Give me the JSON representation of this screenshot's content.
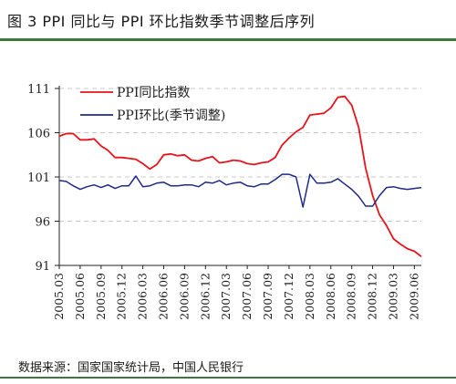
{
  "header": {
    "title": "图 3   PPI 同比与 PPI 环比指数季节调整后序列"
  },
  "footer": {
    "source": "数据来源：国家国家统计局，中国人民银行"
  },
  "colors": {
    "yoy": "#e8141b",
    "mom": "#1f2a86",
    "grid": "#c8c8c8",
    "accent": "#3c7a3c"
  },
  "chart_data": {
    "type": "line",
    "title": "",
    "xlabel": "",
    "ylabel": "",
    "ylim": [
      91,
      111
    ],
    "yticks": [
      91,
      96,
      101,
      106,
      111
    ],
    "grid": "horizontal dashed",
    "legend_position": "top-center",
    "x": [
      "2005.03",
      "2005.04",
      "2005.05",
      "2005.06",
      "2005.07",
      "2005.08",
      "2005.09",
      "2005.10",
      "2005.11",
      "2005.12",
      "2006.01",
      "2006.02",
      "2006.03",
      "2006.04",
      "2006.05",
      "2006.06",
      "2006.07",
      "2006.08",
      "2006.09",
      "2006.10",
      "2006.11",
      "2006.12",
      "2007.01",
      "2007.02",
      "2007.03",
      "2007.04",
      "2007.05",
      "2007.06",
      "2007.07",
      "2007.08",
      "2007.09",
      "2007.10",
      "2007.11",
      "2007.12",
      "2008.01",
      "2008.02",
      "2008.03",
      "2008.04",
      "2008.05",
      "2008.06",
      "2008.07",
      "2008.08",
      "2008.09",
      "2008.10",
      "2008.11",
      "2008.12",
      "2009.01",
      "2009.02",
      "2009.03",
      "2009.04",
      "2009.05",
      "2009.06",
      "2009.07"
    ],
    "xtick_labels": [
      "2005.03",
      "2005.06",
      "2005.09",
      "2005.12",
      "2006.03",
      "2006.06",
      "2006.09",
      "2006.12",
      "2007.03",
      "2007.06",
      "2007.09",
      "2007.12",
      "2008.03",
      "2008.06",
      "2008.09",
      "2008.12",
      "2009.03",
      "2009.06"
    ],
    "series": [
      {
        "name": "PPI同比指数",
        "values": [
          105.6,
          105.9,
          105.9,
          105.2,
          105.2,
          105.3,
          104.5,
          104.0,
          103.2,
          103.2,
          103.1,
          103.0,
          102.5,
          101.9,
          102.4,
          103.5,
          103.6,
          103.4,
          103.5,
          102.9,
          102.8,
          103.1,
          103.3,
          102.6,
          102.7,
          102.9,
          102.8,
          102.5,
          102.4,
          102.6,
          102.7,
          103.2,
          104.6,
          105.4,
          106.1,
          106.6,
          108.0,
          108.1,
          108.2,
          108.8,
          110.0,
          110.1,
          109.1,
          106.6,
          102.0,
          98.9,
          96.7,
          95.5,
          94.0,
          93.4,
          92.9,
          92.6,
          92.0
        ]
      },
      {
        "name": "PPI环比(季节调整)",
        "values": [
          100.6,
          100.5,
          100.0,
          99.6,
          99.9,
          100.1,
          99.8,
          100.1,
          99.7,
          100.0,
          100.0,
          101.1,
          99.9,
          100.0,
          100.3,
          100.4,
          100.0,
          100.0,
          100.1,
          100.1,
          99.9,
          100.4,
          100.3,
          100.6,
          100.1,
          100.3,
          100.4,
          100.0,
          99.9,
          100.2,
          100.2,
          100.7,
          101.3,
          101.3,
          101.0,
          97.6,
          101.3,
          100.3,
          100.3,
          100.4,
          100.8,
          100.2,
          99.6,
          98.8,
          97.7,
          97.7,
          98.9,
          99.8,
          99.9,
          99.7,
          99.6,
          99.7,
          99.8
        ]
      }
    ]
  }
}
